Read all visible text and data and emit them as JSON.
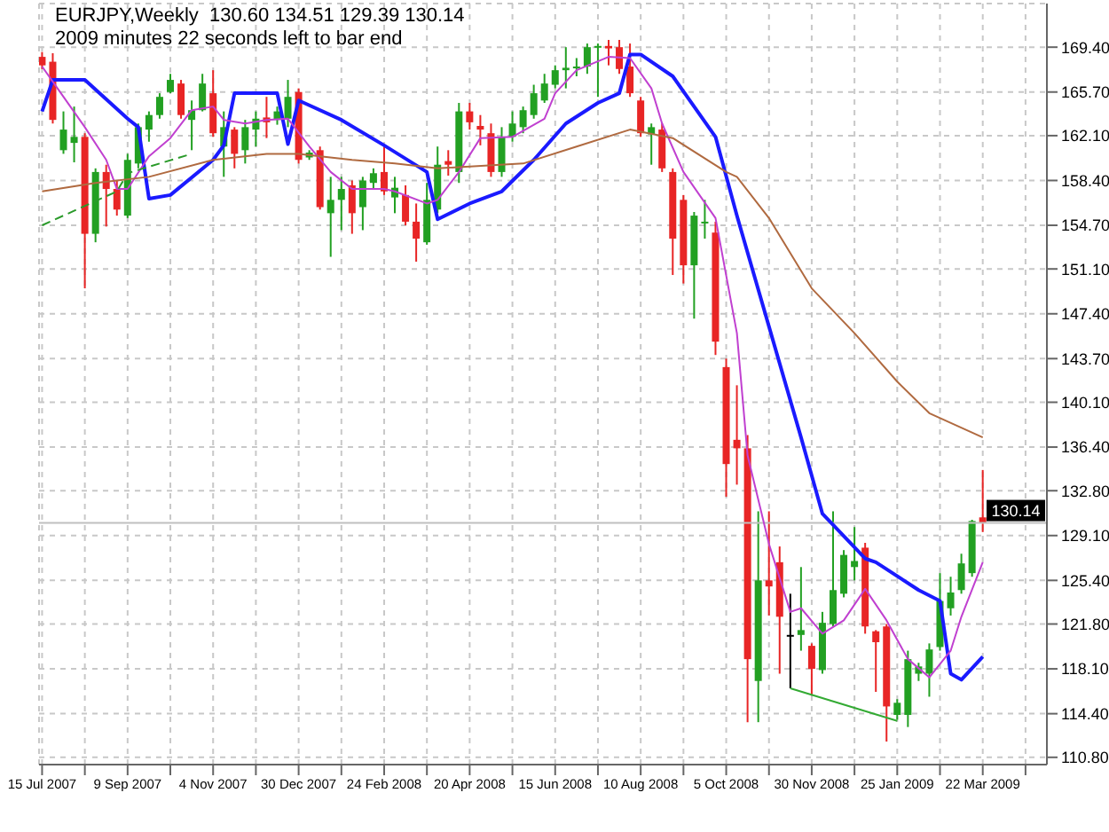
{
  "chart_data": {
    "type": "candlestick",
    "annotations": [
      "EURJPY,Weekly  130.60 134.51 129.39 130.14",
      "2009 minutes 22 seconds left to bar end"
    ],
    "x": [
      "2007-07-15",
      "2007-07-22",
      "2007-07-29",
      "2007-08-05",
      "2007-08-12",
      "2007-08-19",
      "2007-08-26",
      "2007-09-02",
      "2007-09-09",
      "2007-09-16",
      "2007-09-23",
      "2007-09-30",
      "2007-10-07",
      "2007-10-14",
      "2007-10-21",
      "2007-10-28",
      "2007-11-04",
      "2007-11-11",
      "2007-11-18",
      "2007-11-25",
      "2007-12-02",
      "2007-12-09",
      "2007-12-16",
      "2007-12-23",
      "2007-12-30",
      "2008-01-06",
      "2008-01-13",
      "2008-01-20",
      "2008-01-27",
      "2008-02-03",
      "2008-02-10",
      "2008-02-17",
      "2008-02-24",
      "2008-03-02",
      "2008-03-09",
      "2008-03-16",
      "2008-03-23",
      "2008-03-30",
      "2008-04-06",
      "2008-04-13",
      "2008-04-20",
      "2008-04-27",
      "2008-05-04",
      "2008-05-11",
      "2008-05-18",
      "2008-05-25",
      "2008-06-01",
      "2008-06-08",
      "2008-06-15",
      "2008-06-22",
      "2008-06-29",
      "2008-07-06",
      "2008-07-13",
      "2008-07-20",
      "2008-07-27",
      "2008-08-03",
      "2008-08-10",
      "2008-08-17",
      "2008-08-24",
      "2008-08-31",
      "2008-09-07",
      "2008-09-14",
      "2008-09-21",
      "2008-09-28",
      "2008-10-05",
      "2008-10-12",
      "2008-10-19",
      "2008-10-26",
      "2008-11-02",
      "2008-11-09",
      "2008-11-16",
      "2008-11-23",
      "2008-11-30",
      "2008-12-07",
      "2008-12-14",
      "2008-12-21",
      "2008-12-28",
      "2009-01-04",
      "2009-01-11",
      "2009-01-18",
      "2009-01-25",
      "2009-02-01",
      "2009-02-08",
      "2009-02-15",
      "2009-02-22",
      "2009-03-01",
      "2009-03-08",
      "2009-03-15",
      "2009-03-22"
    ],
    "ohlc": [
      [
        168.6,
        169.0,
        167.6,
        167.9
      ],
      [
        168.2,
        168.9,
        163.1,
        163.4
      ],
      [
        160.9,
        164.1,
        160.6,
        162.6
      ],
      [
        161.5,
        164.5,
        159.9,
        162.0
      ],
      [
        162.0,
        162.3,
        149.5,
        154.0
      ],
      [
        154.0,
        159.4,
        153.3,
        159.1
      ],
      [
        159.1,
        159.7,
        154.6,
        157.7
      ],
      [
        157.7,
        158.4,
        155.5,
        156.0
      ],
      [
        155.5,
        160.6,
        155.3,
        160.1
      ],
      [
        159.8,
        163.1,
        159.4,
        162.8
      ],
      [
        162.6,
        164.1,
        161.6,
        163.8
      ],
      [
        163.8,
        165.6,
        163.5,
        165.3
      ],
      [
        165.7,
        167.2,
        165.6,
        166.7
      ],
      [
        166.4,
        166.7,
        163.5,
        163.8
      ],
      [
        163.4,
        165.0,
        160.9,
        164.2
      ],
      [
        164.2,
        167.2,
        164.1,
        166.4
      ],
      [
        165.6,
        167.5,
        162.0,
        162.3
      ],
      [
        161.2,
        164.1,
        158.7,
        162.8
      ],
      [
        162.6,
        162.8,
        159.4,
        160.6
      ],
      [
        160.9,
        163.4,
        159.8,
        162.8
      ],
      [
        162.6,
        164.1,
        161.2,
        163.5
      ],
      [
        163.6,
        165.3,
        161.9,
        163.2
      ],
      [
        163.4,
        164.5,
        163.0,
        164.1
      ],
      [
        163.5,
        166.7,
        162.8,
        165.3
      ],
      [
        165.7,
        166.0,
        159.8,
        160.1
      ],
      [
        160.3,
        160.9,
        160.1,
        160.7
      ],
      [
        160.9,
        161.2,
        156.0,
        156.2
      ],
      [
        155.7,
        158.7,
        152.1,
        156.8
      ],
      [
        156.8,
        158.7,
        154.3,
        157.7
      ],
      [
        158.0,
        158.4,
        154.0,
        155.7
      ],
      [
        156.2,
        158.7,
        154.3,
        158.4
      ],
      [
        158.2,
        159.4,
        157.7,
        159.0
      ],
      [
        159.1,
        161.2,
        157.2,
        157.5
      ],
      [
        157.0,
        158.7,
        155.7,
        157.8
      ],
      [
        157.2,
        158.0,
        154.7,
        155.0
      ],
      [
        155.0,
        156.5,
        151.7,
        153.6
      ],
      [
        153.3,
        158.2,
        153.1,
        156.8
      ],
      [
        156.0,
        161.2,
        155.7,
        159.7
      ],
      [
        160.0,
        160.9,
        158.8,
        159.7
      ],
      [
        159.1,
        164.8,
        158.2,
        164.1
      ],
      [
        164.1,
        164.8,
        162.6,
        163.2
      ],
      [
        162.9,
        163.8,
        161.3,
        162.6
      ],
      [
        162.3,
        163.1,
        158.7,
        159.1
      ],
      [
        159.1,
        162.8,
        158.7,
        162.0
      ],
      [
        162.0,
        164.1,
        161.6,
        163.1
      ],
      [
        162.8,
        164.5,
        162.3,
        164.2
      ],
      [
        163.8,
        166.3,
        163.5,
        165.6
      ],
      [
        165.0,
        167.2,
        164.8,
        166.4
      ],
      [
        166.3,
        167.9,
        166.0,
        167.5
      ],
      [
        167.5,
        169.4,
        166.0,
        167.7
      ],
      [
        167.7,
        168.5,
        167.0,
        167.8
      ],
      [
        167.8,
        169.7,
        167.2,
        169.4
      ],
      [
        169.4,
        169.7,
        165.3,
        169.5
      ],
      [
        169.5,
        170.0,
        167.9,
        169.3
      ],
      [
        169.4,
        170.0,
        167.2,
        167.6
      ],
      [
        167.8,
        169.7,
        165.3,
        165.6
      ],
      [
        165.0,
        165.3,
        162.0,
        162.3
      ],
      [
        162.2,
        163.1,
        159.7,
        162.8
      ],
      [
        162.6,
        163.1,
        159.1,
        159.4
      ],
      [
        159.1,
        159.4,
        150.6,
        153.6
      ],
      [
        156.8,
        157.2,
        149.9,
        151.4
      ],
      [
        151.4,
        155.8,
        147.0,
        155.5
      ],
      [
        154.9,
        156.8,
        153.6,
        155.0
      ],
      [
        154.1,
        155.0,
        144.0,
        145.1
      ],
      [
        143.0,
        143.7,
        132.3,
        135.0
      ],
      [
        137.0,
        141.5,
        133.3,
        136.3
      ],
      [
        136.3,
        137.4,
        113.7,
        118.9
      ],
      [
        117.1,
        131.1,
        113.7,
        125.4
      ],
      [
        125.4,
        131.1,
        122.5,
        124.9
      ],
      [
        126.9,
        128.2,
        117.7,
        122.4
      ],
      [
        120.9,
        124.3,
        116.5,
        120.9
      ],
      [
        120.9,
        126.5,
        119.6,
        121.3
      ],
      [
        120.0,
        120.2,
        115.9,
        118.1
      ],
      [
        118.0,
        122.8,
        117.7,
        121.9
      ],
      [
        121.8,
        131.1,
        121.6,
        124.6
      ],
      [
        124.3,
        127.9,
        124.0,
        127.5
      ],
      [
        126.5,
        129.8,
        125.4,
        127.0
      ],
      [
        128.1,
        128.5,
        121.0,
        121.6
      ],
      [
        121.2,
        121.3,
        116.2,
        120.3
      ],
      [
        121.6,
        121.8,
        112.1,
        115.0
      ],
      [
        114.3,
        115.6,
        113.9,
        115.3
      ],
      [
        114.3,
        119.6,
        113.3,
        118.9
      ],
      [
        117.7,
        118.6,
        117.1,
        118.3
      ],
      [
        117.7,
        120.2,
        115.8,
        119.7
      ],
      [
        119.9,
        126.0,
        119.6,
        123.7
      ],
      [
        123.1,
        125.7,
        122.5,
        124.4
      ],
      [
        124.6,
        127.6,
        124.3,
        126.8
      ],
      [
        126.0,
        130.4,
        125.7,
        130.3
      ],
      [
        130.6,
        134.51,
        129.39,
        130.14
      ]
    ],
    "colors": [
      "#e82525",
      "#e82525",
      "#22a022",
      "#22a022",
      "#e82525",
      "#22a022",
      "#e82525",
      "#e82525",
      "#22a022",
      "#22a022",
      "#22a022",
      "#22a022",
      "#22a022",
      "#e82525",
      "#22a022",
      "#22a022",
      "#e82525",
      "#22a022",
      "#e82525",
      "#22a022",
      "#22a022",
      "#e82525",
      "#22a022",
      "#22a022",
      "#e82525",
      "#22a022",
      "#e82525",
      "#22a022",
      "#22a022",
      "#e82525",
      "#22a022",
      "#22a022",
      "#e82525",
      "#22a022",
      "#e82525",
      "#e82525",
      "#22a022",
      "#22a022",
      "#e82525",
      "#22a022",
      "#e82525",
      "#e82525",
      "#e82525",
      "#22a022",
      "#22a022",
      "#22a022",
      "#22a022",
      "#22a022",
      "#22a022",
      "#22a022",
      "#22a022",
      "#22a022",
      "#22a022",
      "#e82525",
      "#e82525",
      "#e82525",
      "#e82525",
      "#22a022",
      "#e82525",
      "#e82525",
      "#e82525",
      "#22a022",
      "#22a022",
      "#e82525",
      "#e82525",
      "#e82525",
      "#e82525",
      "#22a022",
      "#e82525",
      "#e82525",
      "#000000",
      "#22a022",
      "#e82525",
      "#22a022",
      "#22a022",
      "#22a022",
      "#22a022",
      "#e82525",
      "#e82525",
      "#e82525",
      "#22a022",
      "#22a022",
      "#22a022",
      "#22a022",
      "#22a022",
      "#22a022",
      "#22a022",
      "#22a022",
      "#e82525"
    ],
    "series": [
      {
        "type": "line",
        "color": "#1a1aff",
        "x": [
          "2007-07-15",
          "2007-07-22",
          "2007-08-12",
          "2007-09-09",
          "2007-09-16",
          "2007-09-23",
          "2007-10-07",
          "2007-11-04",
          "2007-11-11",
          "2007-11-18",
          "2007-12-16",
          "2007-12-23",
          "2007-12-30",
          "2008-01-27",
          "2008-02-24",
          "2008-03-23",
          "2008-03-30",
          "2008-04-20",
          "2008-05-11",
          "2008-06-01",
          "2008-06-22",
          "2008-07-13",
          "2008-07-27",
          "2008-08-03",
          "2008-08-10",
          "2008-08-31",
          "2008-09-28",
          "2008-10-12",
          "2008-11-23",
          "2008-12-07",
          "2009-01-04",
          "2009-01-11",
          "2009-02-08",
          "2009-02-22",
          "2009-03-01",
          "2009-03-08",
          "2009-03-22"
        ],
        "values": [
          164.1,
          166.7,
          166.7,
          163.5,
          162.8,
          156.9,
          157.2,
          160.1,
          161.3,
          165.6,
          165.6,
          161.4,
          165.0,
          163.4,
          161.3,
          159.1,
          155.2,
          156.5,
          157.5,
          160.1,
          163.1,
          164.8,
          165.6,
          168.8,
          168.8,
          167.0,
          162.0,
          155.5,
          137.2,
          130.9,
          127.2,
          126.9,
          124.6,
          123.7,
          117.7,
          117.2,
          119.1
        ]
      },
      {
        "type": "line",
        "color": "#c040d0",
        "x": [
          "2007-07-15",
          "2007-07-29",
          "2007-08-12",
          "2007-08-26",
          "2007-09-02",
          "2007-09-09",
          "2007-09-23",
          "2007-10-07",
          "2007-10-21",
          "2007-11-04",
          "2007-11-11",
          "2007-11-25",
          "2007-12-09",
          "2007-12-23",
          "2008-01-06",
          "2008-01-20",
          "2008-02-03",
          "2008-02-24",
          "2008-03-02",
          "2008-03-23",
          "2008-03-30",
          "2008-04-13",
          "2008-04-27",
          "2008-05-18",
          "2008-06-08",
          "2008-06-15",
          "2008-06-29",
          "2008-07-20",
          "2008-08-03",
          "2008-08-17",
          "2008-08-24",
          "2008-09-07",
          "2008-09-28",
          "2008-10-12",
          "2008-10-19",
          "2008-11-02",
          "2008-11-16",
          "2008-11-23",
          "2008-12-07",
          "2008-12-21",
          "2009-01-04",
          "2009-01-18",
          "2009-02-01",
          "2009-02-15",
          "2009-03-01",
          "2009-03-08",
          "2009-03-22"
        ],
        "values": [
          167.8,
          165.3,
          162.8,
          160.1,
          157.7,
          157.7,
          160.4,
          161.9,
          164.2,
          164.5,
          163.4,
          163.1,
          163.4,
          163.5,
          161.2,
          159.1,
          157.7,
          157.7,
          157.5,
          156.5,
          156.8,
          159.1,
          161.9,
          162.0,
          163.5,
          165.6,
          167.5,
          168.6,
          168.5,
          166.0,
          163.1,
          159.1,
          155.3,
          145.8,
          135.7,
          128.4,
          122.8,
          123.1,
          121.0,
          122.1,
          124.7,
          122.1,
          118.9,
          117.4,
          119.6,
          122.4,
          126.9
        ]
      },
      {
        "type": "line",
        "color": "#b06a40",
        "x": [
          "2007-07-15",
          "2007-08-19",
          "2007-09-23",
          "2007-11-04",
          "2007-12-09",
          "2007-12-30",
          "2008-02-03",
          "2008-03-02",
          "2008-03-30",
          "2008-05-25",
          "2008-06-29",
          "2008-08-03",
          "2008-08-31",
          "2008-10-05",
          "2008-10-12",
          "2008-11-02",
          "2008-11-30",
          "2008-12-28",
          "2009-01-25",
          "2009-02-15",
          "2009-03-22"
        ],
        "values": [
          157.5,
          158.2,
          158.7,
          160.1,
          160.6,
          160.6,
          160.1,
          159.8,
          159.4,
          159.8,
          161.2,
          162.6,
          161.9,
          159.1,
          158.7,
          155.3,
          149.5,
          145.8,
          141.8,
          139.2,
          137.2
        ]
      },
      {
        "type": "line",
        "color": "#2a9a2a",
        "line_style": "dashed",
        "x": [
          "2007-07-15",
          "2007-09-02",
          "2007-09-09",
          "2007-10-21"
        ],
        "values": [
          154.7,
          157.5,
          159.0,
          160.6
        ]
      },
      {
        "type": "line",
        "color": "#33aa33",
        "x": [
          "2008-11-16",
          "2009-01-25"
        ],
        "values": [
          116.5,
          113.8
        ]
      }
    ],
    "xlim": [
      "2007-07-13",
      "2009-05-03"
    ],
    "xticks": [
      {
        "value": "2007-07-15",
        "label": "15 Jul 2007"
      },
      {
        "value": "2007-08-12",
        "label": null
      },
      {
        "value": "2007-09-09",
        "label": "9 Sep 2007"
      },
      {
        "value": "2007-10-07",
        "label": null
      },
      {
        "value": "2007-11-04",
        "label": "4 Nov 2007"
      },
      {
        "value": "2007-12-02",
        "label": null
      },
      {
        "value": "2007-12-30",
        "label": "30 Dec 2007"
      },
      {
        "value": "2008-01-27",
        "label": null
      },
      {
        "value": "2008-02-24",
        "label": "24 Feb 2008"
      },
      {
        "value": "2008-03-23",
        "label": null
      },
      {
        "value": "2008-04-20",
        "label": "20 Apr 2008"
      },
      {
        "value": "2008-05-18",
        "label": null
      },
      {
        "value": "2008-06-15",
        "label": "15 Jun 2008"
      },
      {
        "value": "2008-07-13",
        "label": null
      },
      {
        "value": "2008-08-10",
        "label": "10 Aug 2008"
      },
      {
        "value": "2008-09-07",
        "label": null
      },
      {
        "value": "2008-10-05",
        "label": "5 Oct 2008"
      },
      {
        "value": "2008-11-02",
        "label": null
      },
      {
        "value": "2008-11-30",
        "label": "30 Nov 2008"
      },
      {
        "value": "2008-12-28",
        "label": null
      },
      {
        "value": "2009-01-25",
        "label": "25 Jan 2009"
      },
      {
        "value": "2009-02-22",
        "label": null
      },
      {
        "value": "2009-03-22",
        "label": "22 Mar 2009"
      },
      {
        "value": "2009-04-19",
        "label": null
      }
    ],
    "ylim": [
      110.2,
      173.0
    ],
    "yticks": [
      {
        "value": 110.8,
        "label": "110.80"
      },
      {
        "value": 114.4,
        "label": "114.40"
      },
      {
        "value": 118.1,
        "label": "118.10"
      },
      {
        "value": 121.8,
        "label": "121.80"
      },
      {
        "value": 125.4,
        "label": "125.40"
      },
      {
        "value": 129.1,
        "label": "129.10"
      },
      {
        "value": 132.8,
        "label": "132.80"
      },
      {
        "value": 136.4,
        "label": "136.40"
      },
      {
        "value": 140.1,
        "label": "140.10"
      },
      {
        "value": 143.7,
        "label": "143.70"
      },
      {
        "value": 147.4,
        "label": "147.40"
      },
      {
        "value": 151.1,
        "label": "151.10"
      },
      {
        "value": 154.7,
        "label": "154.70"
      },
      {
        "value": 158.4,
        "label": "158.40"
      },
      {
        "value": 162.1,
        "label": "162.10"
      },
      {
        "value": 165.7,
        "label": "165.70"
      },
      {
        "value": 169.4,
        "label": "169.40"
      }
    ],
    "grid": true,
    "ref_lines": [
      {
        "axis": "y",
        "value": 130.14,
        "label": "130.14",
        "color": "#c0c0c0"
      }
    ]
  }
}
